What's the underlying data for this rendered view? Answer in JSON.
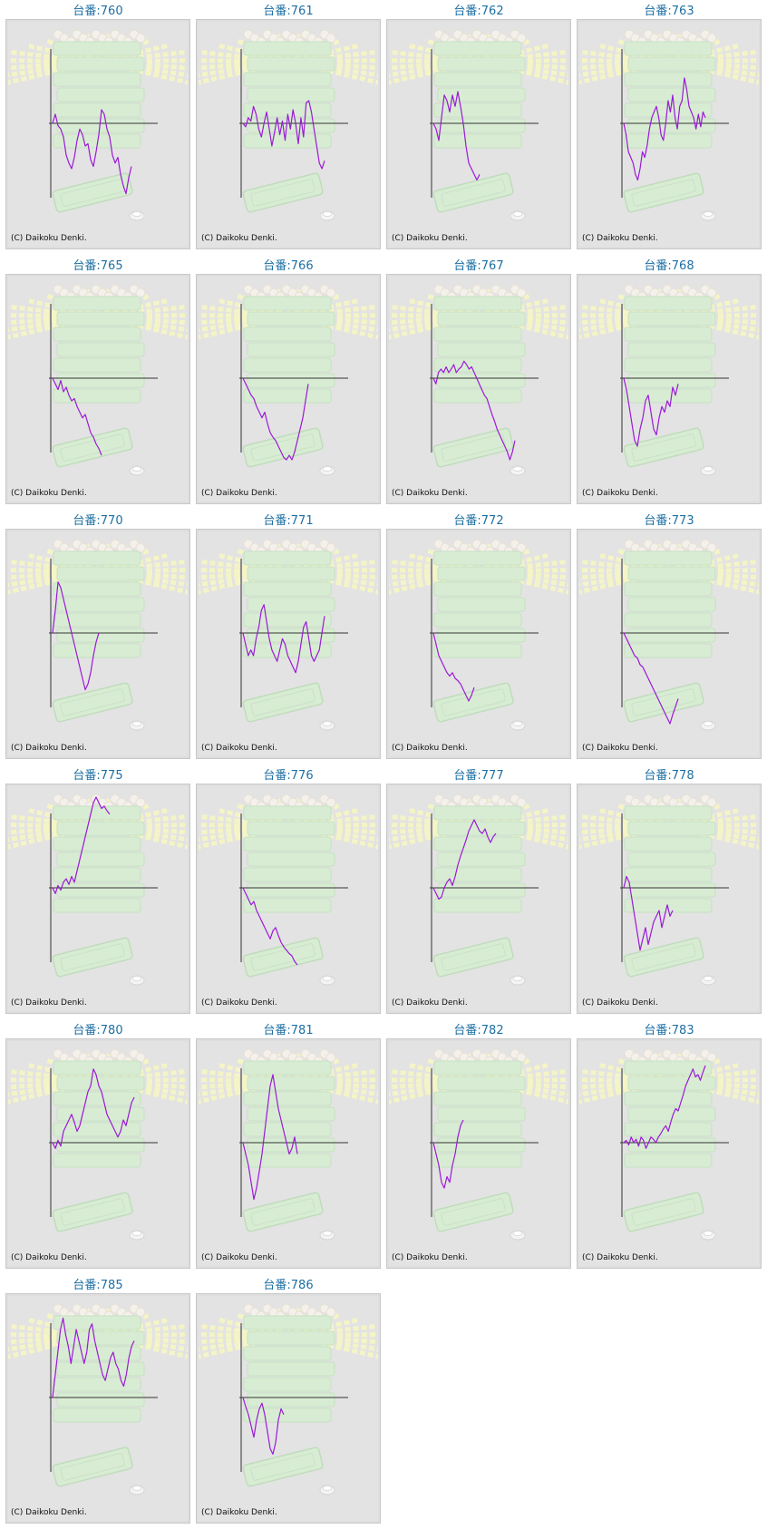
{
  "page": {
    "copyright": "(C) Daikoku Denki.",
    "line_color": "#9a1ad6",
    "title_color": "#1d6fa3"
  },
  "machines": [
    {
      "label": "台番:760",
      "y": [
        0,
        8,
        -2,
        -5,
        -12,
        -28,
        -35,
        -40,
        -30,
        -15,
        -5,
        -10,
        -20,
        -18,
        -32,
        -38,
        -25,
        -10,
        12,
        8,
        -5,
        -12,
        -28,
        -35,
        -30,
        -45,
        -55,
        -62,
        -48,
        -38
      ]
    },
    {
      "label": "台番:761",
      "y": [
        0,
        -3,
        5,
        2,
        15,
        8,
        -5,
        -12,
        0,
        10,
        -5,
        -20,
        -8,
        5,
        -10,
        2,
        -15,
        8,
        -5,
        12,
        0,
        -18,
        5,
        -12,
        18,
        20,
        10,
        -5,
        -20,
        -35,
        -40,
        -33
      ]
    },
    {
      "label": "台番:762",
      "y": [
        0,
        -5,
        -15,
        5,
        25,
        20,
        10,
        25,
        15,
        28,
        15,
        0,
        -20,
        -35,
        -40,
        -45,
        -50,
        -45
      ]
    },
    {
      "label": "台番:763",
      "y": [
        0,
        -10,
        -25,
        -30,
        -35,
        -45,
        -50,
        -40,
        -25,
        -30,
        -20,
        -5,
        5,
        10,
        15,
        5,
        -10,
        -15,
        0,
        20,
        10,
        25,
        5,
        -5,
        15,
        20,
        40,
        30,
        15,
        10,
        5,
        -5,
        8,
        -3,
        10,
        5
      ]
    },
    {
      "label": "台番:765",
      "y": [
        0,
        -5,
        -10,
        -2,
        -12,
        -8,
        -15,
        -20,
        -18,
        -25,
        -30,
        -35,
        -32,
        -40,
        -48,
        -52,
        -58,
        -62,
        -68
      ]
    },
    {
      "label": "台番:766",
      "y": [
        0,
        -5,
        -10,
        -15,
        -18,
        -25,
        -30,
        -35,
        -30,
        -40,
        -48,
        -52,
        -55,
        -60,
        -65,
        -70,
        -72,
        -68,
        -72,
        -65,
        -55,
        -45,
        -35,
        -20,
        -5
      ]
    },
    {
      "label": "台番:767",
      "y": [
        0,
        -5,
        5,
        8,
        5,
        10,
        5,
        8,
        12,
        5,
        8,
        10,
        15,
        12,
        8,
        10,
        5,
        0,
        -5,
        -10,
        -15,
        -18,
        -25,
        -32,
        -38,
        -45,
        -50,
        -55,
        -60,
        -65,
        -72,
        -65,
        -55
      ]
    },
    {
      "label": "台番:768",
      "y": [
        0,
        -10,
        -25,
        -40,
        -55,
        -60,
        -45,
        -35,
        -20,
        -15,
        -30,
        -45,
        -50,
        -35,
        -25,
        -30,
        -20,
        -25,
        -8,
        -15,
        -5
      ]
    },
    {
      "label": "台番:770",
      "y": [
        0,
        20,
        45,
        40,
        30,
        20,
        10,
        0,
        -10,
        -20,
        -30,
        -40,
        -50,
        -45,
        -35,
        -20,
        -8,
        0
      ]
    },
    {
      "label": "台番:771",
      "y": [
        0,
        -10,
        -20,
        -15,
        -20,
        -5,
        5,
        20,
        25,
        10,
        -5,
        -15,
        -20,
        -25,
        -15,
        -5,
        -10,
        -20,
        -25,
        -30,
        -35,
        -25,
        -10,
        5,
        10,
        -5,
        -20,
        -25,
        -20,
        -15,
        0,
        15
      ]
    },
    {
      "label": "台番:772",
      "y": [
        0,
        -10,
        -20,
        -25,
        -30,
        -35,
        -38,
        -35,
        -40,
        -42,
        -45,
        -50,
        -55,
        -60,
        -55,
        -48
      ]
    },
    {
      "label": "台番:773",
      "y": [
        0,
        -5,
        -10,
        -15,
        -20,
        -22,
        -28,
        -30,
        -35,
        -40,
        -45,
        -50,
        -55,
        -60,
        -65,
        -70,
        -75,
        -80,
        -72,
        -65,
        -58
      ]
    },
    {
      "label": "台番:775",
      "y": [
        0,
        -5,
        2,
        -2,
        5,
        8,
        3,
        10,
        5,
        15,
        25,
        35,
        45,
        55,
        65,
        75,
        80,
        75,
        70,
        72,
        68,
        65
      ]
    },
    {
      "label": "台番:776",
      "y": [
        0,
        -5,
        -10,
        -15,
        -12,
        -20,
        -25,
        -30,
        -35,
        -40,
        -45,
        -38,
        -35,
        -42,
        -48,
        -52,
        -55,
        -58,
        -60,
        -65,
        -68
      ]
    },
    {
      "label": "台番:777",
      "y": [
        0,
        -5,
        -10,
        -8,
        0,
        5,
        8,
        2,
        10,
        20,
        28,
        35,
        42,
        50,
        55,
        60,
        55,
        50,
        48,
        52,
        45,
        40,
        45,
        48
      ]
    },
    {
      "label": "台番:778",
      "y": [
        0,
        10,
        5,
        -10,
        -25,
        -40,
        -55,
        -45,
        -35,
        -50,
        -40,
        -30,
        -25,
        -20,
        -35,
        -25,
        -15,
        -25,
        -20
      ]
    },
    {
      "label": "台番:780",
      "y": [
        0,
        -5,
        2,
        -3,
        10,
        15,
        20,
        25,
        18,
        10,
        15,
        25,
        35,
        45,
        50,
        65,
        60,
        50,
        45,
        35,
        25,
        20,
        15,
        10,
        5,
        10,
        20,
        15,
        25,
        35,
        40
      ]
    },
    {
      "label": "台番:781",
      "y": [
        0,
        -10,
        -20,
        -35,
        -50,
        -40,
        -25,
        -10,
        10,
        30,
        50,
        60,
        45,
        30,
        20,
        10,
        0,
        -10,
        -5,
        5,
        -10
      ]
    },
    {
      "label": "台番:782",
      "y": [
        0,
        -10,
        -20,
        -35,
        -40,
        -30,
        -35,
        -20,
        -10,
        5,
        15,
        20
      ]
    },
    {
      "label": "台番:783",
      "y": [
        0,
        2,
        -2,
        5,
        0,
        3,
        -3,
        5,
        2,
        -5,
        0,
        5,
        3,
        0,
        5,
        8,
        12,
        15,
        10,
        18,
        25,
        30,
        28,
        35,
        42,
        50,
        55,
        60,
        65,
        58,
        60,
        55,
        62,
        68
      ]
    },
    {
      "label": "台番:785",
      "y": [
        0,
        20,
        40,
        60,
        70,
        55,
        45,
        30,
        45,
        60,
        50,
        40,
        30,
        40,
        60,
        65,
        50,
        40,
        30,
        20,
        15,
        25,
        35,
        40,
        30,
        25,
        15,
        10,
        20,
        35,
        45,
        50
      ]
    },
    {
      "label": "台番:786",
      "y": [
        0,
        -8,
        -15,
        -25,
        -35,
        -20,
        -10,
        -5,
        -15,
        -30,
        -45,
        -50,
        -40,
        -20,
        -10,
        -15
      ]
    }
  ]
}
